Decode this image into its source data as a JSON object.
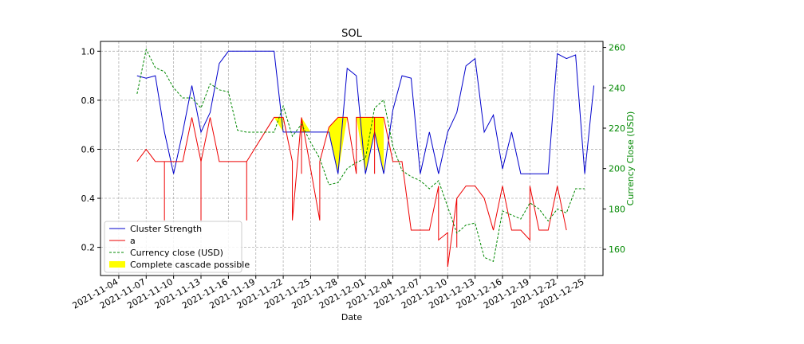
{
  "chart_data": {
    "type": "line",
    "title": "SOL",
    "xlabel": "Date",
    "ylabel": "",
    "y2label": "Currency Close (USD)",
    "xlim": [
      "2021-11-02",
      "2021-12-27"
    ],
    "ylim": [
      0.085,
      1.04
    ],
    "y2lim": [
      147,
      263
    ],
    "grid": true,
    "legend_position": "lower-left",
    "x_ticks": [
      "2021-11-04",
      "2021-11-07",
      "2021-11-10",
      "2021-11-13",
      "2021-11-16",
      "2021-11-19",
      "2021-11-22",
      "2021-11-25",
      "2021-11-28",
      "2021-12-01",
      "2021-12-04",
      "2021-12-07",
      "2021-12-10",
      "2021-12-13",
      "2021-12-16",
      "2021-12-19",
      "2021-12-22",
      "2021-12-25"
    ],
    "y_ticks": [
      "0.2",
      "0.4",
      "0.6",
      "0.8",
      "1.0"
    ],
    "y2_ticks": [
      "160",
      "180",
      "200",
      "220",
      "240",
      "260"
    ],
    "colors": {
      "cluster": "#0000cc",
      "a": "#ee0000",
      "currency": "#008800",
      "fill": "#ffff00",
      "grid": "#b0b0b0"
    },
    "series": [
      {
        "name": "Cluster Strength",
        "axis": "left",
        "points": [
          [
            "2021-11-06",
            0.9
          ],
          [
            "2021-11-07",
            0.89
          ],
          [
            "2021-11-08",
            0.9
          ],
          [
            "2021-11-09",
            0.67
          ],
          [
            "2021-11-10",
            0.5
          ],
          [
            "2021-11-11",
            0.67
          ],
          [
            "2021-11-12",
            0.86
          ],
          [
            "2021-11-13",
            0.67
          ],
          [
            "2021-11-14",
            0.75
          ],
          [
            "2021-11-15",
            0.95
          ],
          [
            "2021-11-16",
            1.0
          ],
          [
            "2021-11-17",
            1.0
          ],
          [
            "2021-11-18",
            1.0
          ],
          [
            "2021-11-19",
            1.0
          ],
          [
            "2021-11-20",
            1.0
          ],
          [
            "2021-11-21",
            1.0
          ],
          [
            "2021-11-22",
            0.67
          ],
          [
            "2021-11-23",
            0.67
          ],
          [
            "2021-11-24",
            0.67
          ],
          [
            "2021-11-25",
            0.67
          ],
          [
            "2021-11-26",
            0.67
          ],
          [
            "2021-11-27",
            0.67
          ],
          [
            "2021-11-28",
            0.5
          ],
          [
            "2021-11-29",
            0.93
          ],
          [
            "2021-11-30",
            0.9
          ],
          [
            "2021-12-01",
            0.5
          ],
          [
            "2021-12-02",
            0.67
          ],
          [
            "2021-12-03",
            0.5
          ],
          [
            "2021-12-04",
            0.76
          ],
          [
            "2021-12-05",
            0.9
          ],
          [
            "2021-12-06",
            0.89
          ],
          [
            "2021-12-07",
            0.5
          ],
          [
            "2021-12-08",
            0.67
          ],
          [
            "2021-12-09",
            0.5
          ],
          [
            "2021-12-10",
            0.67
          ],
          [
            "2021-12-11",
            0.75
          ],
          [
            "2021-12-12",
            0.94
          ],
          [
            "2021-12-13",
            0.97
          ],
          [
            "2021-12-14",
            0.67
          ],
          [
            "2021-12-15",
            0.74
          ],
          [
            "2021-12-16",
            0.52
          ],
          [
            "2021-12-17",
            0.67
          ],
          [
            "2021-12-18",
            0.5
          ],
          [
            "2021-12-19",
            0.5
          ],
          [
            "2021-12-20",
            0.5
          ],
          [
            "2021-12-21",
            0.5
          ],
          [
            "2021-12-22",
            0.99
          ],
          [
            "2021-12-23",
            0.97
          ],
          [
            "2021-12-24",
            0.985
          ],
          [
            "2021-12-25",
            0.5
          ],
          [
            "2021-12-26",
            0.86
          ]
        ]
      },
      {
        "name": "a",
        "axis": "left",
        "points": [
          [
            "2021-11-06",
            0.55
          ],
          [
            "2021-11-07",
            0.6
          ],
          [
            "2021-11-08",
            0.55
          ],
          [
            "2021-11-09",
            0.55
          ],
          [
            "2021-11-09",
            0.31
          ],
          [
            "2021-11-09",
            0.55
          ],
          [
            "2021-11-10",
            0.55
          ],
          [
            "2021-11-11",
            0.55
          ],
          [
            "2021-11-12",
            0.73
          ],
          [
            "2021-11-13",
            0.55
          ],
          [
            "2021-11-13",
            0.31
          ],
          [
            "2021-11-13",
            0.55
          ],
          [
            "2021-11-14",
            0.73
          ],
          [
            "2021-11-15",
            0.55
          ],
          [
            "2021-11-16",
            0.55
          ],
          [
            "2021-11-17",
            0.55
          ],
          [
            "2021-11-18",
            0.55
          ],
          [
            "2021-11-18",
            0.31
          ],
          [
            "2021-11-18",
            0.55
          ],
          [
            "2021-11-21",
            0.73
          ],
          [
            "2021-11-22",
            0.73
          ],
          [
            "2021-11-23",
            0.55
          ],
          [
            "2021-11-23",
            0.31
          ],
          [
            "2021-11-24",
            0.73
          ],
          [
            "2021-11-24",
            0.5
          ],
          [
            "2021-11-24",
            0.73
          ],
          [
            "2021-11-26",
            0.31
          ],
          [
            "2021-11-26",
            0.55
          ],
          [
            "2021-11-27",
            0.69
          ],
          [
            "2021-11-28",
            0.73
          ],
          [
            "2021-11-29",
            0.73
          ],
          [
            "2021-11-30",
            0.5
          ],
          [
            "2021-11-30",
            0.73
          ],
          [
            "2021-12-02",
            0.73
          ],
          [
            "2021-12-02",
            0.5
          ],
          [
            "2021-12-02",
            0.73
          ],
          [
            "2021-12-03",
            0.73
          ],
          [
            "2021-12-04",
            0.55
          ],
          [
            "2021-12-05",
            0.55
          ],
          [
            "2021-12-06",
            0.27
          ],
          [
            "2021-12-07",
            0.27
          ],
          [
            "2021-12-08",
            0.27
          ],
          [
            "2021-12-09",
            0.45
          ],
          [
            "2021-12-09",
            0.23
          ],
          [
            "2021-12-10",
            0.26
          ],
          [
            "2021-12-10",
            0.12
          ],
          [
            "2021-12-11",
            0.4
          ],
          [
            "2021-12-11",
            0.2
          ],
          [
            "2021-12-11",
            0.4
          ],
          [
            "2021-12-12",
            0.45
          ],
          [
            "2021-12-13",
            0.45
          ],
          [
            "2021-12-14",
            0.4
          ],
          [
            "2021-12-15",
            0.27
          ],
          [
            "2021-12-16",
            0.45
          ],
          [
            "2021-12-17",
            0.27
          ],
          [
            "2021-12-18",
            0.27
          ],
          [
            "2021-12-19",
            0.23
          ],
          [
            "2021-12-19",
            0.45
          ],
          [
            "2021-12-20",
            0.27
          ],
          [
            "2021-12-21",
            0.27
          ],
          [
            "2021-12-22",
            0.45
          ],
          [
            "2021-12-23",
            0.27
          ]
        ]
      },
      {
        "name": "Currency close (USD)",
        "axis": "right",
        "points": [
          [
            "2021-11-06",
            237
          ],
          [
            "2021-11-07",
            259
          ],
          [
            "2021-11-08",
            250
          ],
          [
            "2021-11-09",
            248
          ],
          [
            "2021-11-10",
            240
          ],
          [
            "2021-11-11",
            235
          ],
          [
            "2021-11-12",
            235
          ],
          [
            "2021-11-13",
            230
          ],
          [
            "2021-11-14",
            242
          ],
          [
            "2021-11-15",
            239
          ],
          [
            "2021-11-16",
            238
          ],
          [
            "2021-11-17",
            219
          ],
          [
            "2021-11-18",
            218
          ],
          [
            "2021-11-19",
            218
          ],
          [
            "2021-11-20",
            218
          ],
          [
            "2021-11-21",
            218
          ],
          [
            "2021-11-22",
            231
          ],
          [
            "2021-11-23",
            216
          ],
          [
            "2021-11-24",
            222
          ],
          [
            "2021-11-25",
            213
          ],
          [
            "2021-11-26",
            205
          ],
          [
            "2021-11-27",
            192
          ],
          [
            "2021-11-28",
            193
          ],
          [
            "2021-11-29",
            200
          ],
          [
            "2021-11-30",
            203
          ],
          [
            "2021-12-01",
            205
          ],
          [
            "2021-12-02",
            230
          ],
          [
            "2021-12-03",
            234
          ],
          [
            "2021-12-04",
            211
          ],
          [
            "2021-12-05",
            199
          ],
          [
            "2021-12-06",
            196
          ],
          [
            "2021-12-07",
            194
          ],
          [
            "2021-12-08",
            190
          ],
          [
            "2021-12-09",
            194
          ],
          [
            "2021-12-10",
            181
          ],
          [
            "2021-12-11",
            168
          ],
          [
            "2021-12-12",
            172
          ],
          [
            "2021-12-13",
            173
          ],
          [
            "2021-12-14",
            156
          ],
          [
            "2021-12-15",
            154
          ],
          [
            "2021-12-16",
            179
          ],
          [
            "2021-12-17",
            177
          ],
          [
            "2021-12-18",
            175
          ],
          [
            "2021-12-19",
            183
          ],
          [
            "2021-12-20",
            180
          ],
          [
            "2021-12-21",
            174
          ],
          [
            "2021-12-22",
            180
          ],
          [
            "2021-12-23",
            178
          ],
          [
            "2021-12-24",
            190
          ],
          [
            "2021-12-25",
            190
          ]
        ]
      }
    ],
    "fill_series": {
      "name": "Complete cascade possible",
      "regions": [
        {
          "x": [
            "2021-11-21",
            "2021-11-22"
          ],
          "upper": [
            0.73,
            0.73
          ],
          "lower": [
            0.73,
            0.67
          ]
        },
        {
          "x": [
            "2021-11-24",
            "2021-11-25"
          ],
          "upper": [
            0.73,
            0.67
          ],
          "lower": [
            0.67,
            0.67
          ]
        },
        {
          "x": [
            "2021-11-10",
            "2021-11-10"
          ],
          "upper": [
            0.55,
            0.55
          ],
          "lower": [
            0.52,
            0.5
          ]
        },
        {
          "x": [
            "2021-11-27",
            "2021-11-28",
            "2021-11-29"
          ],
          "upper": [
            0.69,
            0.73,
            0.73
          ],
          "lower": [
            0.67,
            0.5,
            0.73
          ]
        },
        {
          "x": [
            "2021-11-30",
            "2021-12-01",
            "2021-12-02",
            "2021-12-03"
          ],
          "upper": [
            0.73,
            0.73,
            0.73,
            0.73
          ],
          "lower": [
            0.73,
            0.5,
            0.67,
            0.5
          ]
        }
      ]
    },
    "legend": [
      "Cluster Strength",
      "a",
      "Currency close (USD)",
      "Complete cascade possible"
    ]
  }
}
